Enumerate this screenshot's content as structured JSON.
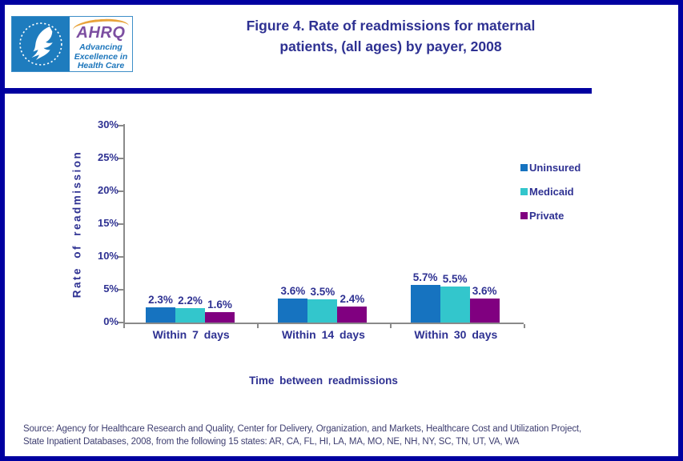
{
  "header": {
    "logo": {
      "org": "AHRQ",
      "tagline": [
        "Advancing",
        "Excellence in",
        "Health Care"
      ],
      "seal_icon": "hhs-eagle-seal"
    },
    "title_lines": [
      "Figure 4. Rate of readmissions for maternal",
      "patients, (all ages) by payer, 2008"
    ]
  },
  "chart_data": {
    "type": "bar",
    "title": "Figure 4. Rate of readmissions for maternal patients, (all ages) by payer, 2008",
    "categories": [
      "Within 7 days",
      "Within 14 days",
      "Within 30 days"
    ],
    "series": [
      {
        "name": "Uninsured",
        "color": "#1673C0",
        "values": [
          2.3,
          3.6,
          5.7
        ],
        "labels": [
          "2.3%",
          "3.6%",
          "5.7%"
        ]
      },
      {
        "name": "Medicaid",
        "color": "#33C6CC",
        "values": [
          2.2,
          3.5,
          5.5
        ],
        "labels": [
          "2.2%",
          "3.5%",
          "5.5%"
        ]
      },
      {
        "name": "Private",
        "color": "#800080",
        "values": [
          1.6,
          2.4,
          3.6
        ],
        "labels": [
          "1.6%",
          "2.4%",
          "3.6%"
        ]
      }
    ],
    "xlabel": "Time between readmissions",
    "ylabel": "Rate of readmission",
    "ylim": [
      0,
      30
    ],
    "yticks": [
      "0%",
      "5%",
      "10%",
      "15%",
      "20%",
      "25%",
      "30%"
    ],
    "grid": false,
    "legend_position": "right-middle"
  },
  "footer": {
    "source_lines": [
      "Source: Agency for Healthcare Research and Quality, Center for Delivery, Organization, and Markets, Healthcare Cost and Utilization Project,",
      "State Inpatient Databases, 2008, from the following 15 states: AR, CA, FL, HI, LA, MA, MO, NE, NH, NY, SC, TN, UT, VA, WA"
    ]
  },
  "colors": {
    "frame": "#0000A0",
    "divider": "#0000A0",
    "title_text": "#2E3192",
    "axis_line": "#8A8A8A",
    "source_text": "#3E3E70",
    "seal_background": "#1E7CBE",
    "ahrq_purple": "#7C4EA1",
    "tagline_blue": "#1B75BB",
    "arc_orange": "#E8A33B"
  }
}
